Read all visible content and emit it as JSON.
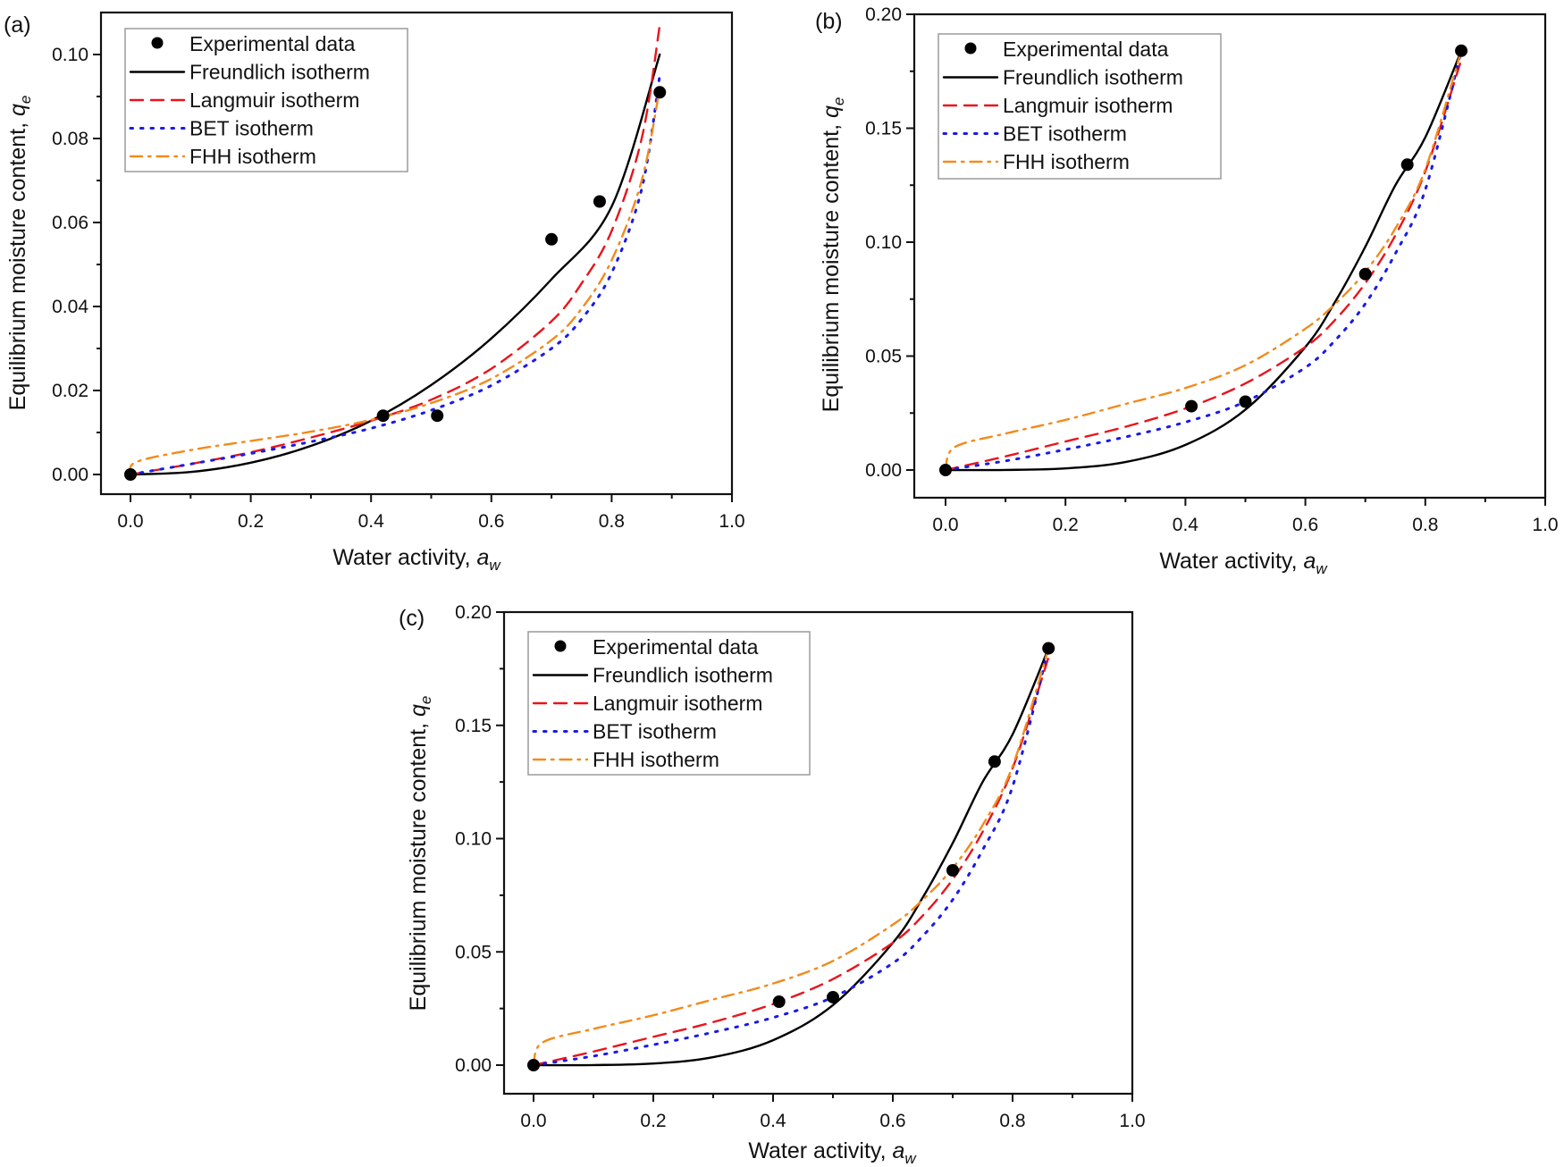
{
  "figure": {
    "panels": [
      "(a)",
      "(b)",
      "(c)"
    ]
  },
  "chart_data": [
    {
      "type": "line",
      "panel": "(a)",
      "xlabel": "Water activity, a_w",
      "xlabel_main": "Water activity, ",
      "xlabel_var": "a",
      "xlabel_sub": "w",
      "ylabel": "Equilibrium moisture content, q_e",
      "ylabel_main": "Equilibrium moisture content, ",
      "ylabel_var": "q",
      "ylabel_sub": "e",
      "xlim": [
        -0.05,
        1.0
      ],
      "ylim": [
        -0.005,
        0.11
      ],
      "xticks": [
        0.0,
        0.2,
        0.4,
        0.6,
        0.8,
        1.0
      ],
      "xtick_labels": [
        "0.0",
        "0.2",
        "0.4",
        "0.6",
        "0.8",
        "1.0"
      ],
      "yticks": [
        0.0,
        0.02,
        0.04,
        0.06,
        0.08,
        0.1
      ],
      "ytick_labels": [
        "0.00",
        "0.02",
        "0.04",
        "0.06",
        "0.08",
        "0.10"
      ],
      "legend_position": "top-left",
      "grid": false,
      "series": [
        {
          "name": "Experimental data",
          "kind": "scatter",
          "color": "#000000",
          "x": [
            0.0,
            0.42,
            0.51,
            0.7,
            0.78,
            0.88
          ],
          "y": [
            0.0,
            0.014,
            0.014,
            0.056,
            0.065,
            0.091
          ]
        },
        {
          "name": "Freundlich isotherm",
          "kind": "line",
          "style": "solid",
          "color": "#000000",
          "x": [
            0.0,
            0.1,
            0.2,
            0.3,
            0.4,
            0.5,
            0.6,
            0.7,
            0.8,
            0.88
          ],
          "y": [
            0.0,
            0.0006,
            0.0028,
            0.0068,
            0.0128,
            0.0213,
            0.0324,
            0.0465,
            0.0638,
            0.1
          ]
        },
        {
          "name": "Langmuir isotherm",
          "kind": "line",
          "style": "dashed",
          "color": "#e8141c",
          "x": [
            0.0,
            0.1,
            0.2,
            0.3,
            0.4,
            0.5,
            0.6,
            0.7,
            0.75,
            0.8,
            0.85,
            0.88
          ],
          "y": [
            0.0,
            0.0025,
            0.0053,
            0.0088,
            0.0128,
            0.0178,
            0.0252,
            0.0365,
            0.0455,
            0.058,
            0.08,
            0.107
          ]
        },
        {
          "name": "BET isotherm",
          "kind": "line",
          "style": "dotted",
          "color": "#1a1ae6",
          "x": [
            0.0,
            0.1,
            0.2,
            0.3,
            0.4,
            0.5,
            0.6,
            0.7,
            0.75,
            0.8,
            0.85,
            0.88
          ],
          "y": [
            0.0,
            0.0025,
            0.005,
            0.0078,
            0.011,
            0.0153,
            0.0212,
            0.03,
            0.037,
            0.048,
            0.068,
            0.095
          ]
        },
        {
          "name": "FHH isotherm",
          "kind": "line",
          "style": "dashdot",
          "color": "#f28a1c",
          "x": [
            0.0,
            0.01,
            0.1,
            0.2,
            0.3,
            0.4,
            0.5,
            0.6,
            0.7,
            0.75,
            0.8,
            0.85,
            0.88
          ],
          "y": [
            0.0,
            0.003,
            0.0058,
            0.008,
            0.0102,
            0.013,
            0.017,
            0.0228,
            0.032,
            0.0395,
            0.051,
            0.07,
            0.092
          ]
        }
      ]
    },
    {
      "type": "line",
      "panel": "(b)",
      "xlabel": "Water activity, a_w",
      "xlabel_main": "Water activity, ",
      "xlabel_var": "a",
      "xlabel_sub": "w",
      "ylabel": "Equilibrium moisture content, q_e",
      "ylabel_main": "Equilibrium moisture content, ",
      "ylabel_var": "q",
      "ylabel_sub": "e",
      "xlim": [
        -0.05,
        1.0
      ],
      "ylim": [
        -0.0125,
        0.2
      ],
      "xticks": [
        0.0,
        0.2,
        0.4,
        0.6,
        0.8,
        1.0
      ],
      "xtick_labels": [
        "0.0",
        "0.2",
        "0.4",
        "0.6",
        "0.8",
        "1.0"
      ],
      "yticks": [
        0.0,
        0.05,
        0.1,
        0.15,
        0.2
      ],
      "ytick_labels": [
        "0.00",
        "0.05",
        "0.10",
        "0.15",
        "0.20"
      ],
      "legend_position": "top-left",
      "grid": false,
      "series": [
        {
          "name": "Experimental data",
          "kind": "scatter",
          "color": "#000000",
          "x": [
            0.0,
            0.41,
            0.5,
            0.7,
            0.77,
            0.86
          ],
          "y": [
            0.0,
            0.028,
            0.03,
            0.086,
            0.134,
            0.184
          ]
        },
        {
          "name": "Freundlich isotherm",
          "kind": "line",
          "style": "solid",
          "color": "#000000",
          "x": [
            0.0,
            0.1,
            0.2,
            0.3,
            0.4,
            0.5,
            0.6,
            0.65,
            0.7,
            0.75,
            0.8,
            0.86
          ],
          "y": [
            0.0,
            3e-05,
            0.0007,
            0.0035,
            0.011,
            0.0265,
            0.054,
            0.074,
            0.098,
            0.125,
            0.146,
            0.184
          ]
        },
        {
          "name": "Langmuir isotherm",
          "kind": "line",
          "style": "dashed",
          "color": "#e8141c",
          "x": [
            0.0,
            0.1,
            0.2,
            0.3,
            0.4,
            0.5,
            0.6,
            0.65,
            0.7,
            0.75,
            0.8,
            0.86
          ],
          "y": [
            0.0,
            0.006,
            0.0125,
            0.019,
            0.027,
            0.038,
            0.054,
            0.066,
            0.082,
            0.103,
            0.131,
            0.18
          ]
        },
        {
          "name": "BET isotherm",
          "kind": "line",
          "style": "dotted",
          "color": "#1a1ae6",
          "x": [
            0.0,
            0.1,
            0.2,
            0.3,
            0.4,
            0.5,
            0.6,
            0.65,
            0.7,
            0.75,
            0.8,
            0.86
          ],
          "y": [
            0.0,
            0.004,
            0.009,
            0.0145,
            0.021,
            0.03,
            0.045,
            0.057,
            0.073,
            0.095,
            0.123,
            0.184
          ]
        },
        {
          "name": "FHH isotherm",
          "kind": "line",
          "style": "dashdot",
          "color": "#f28a1c",
          "x": [
            0.0,
            0.015,
            0.1,
            0.2,
            0.3,
            0.4,
            0.5,
            0.6,
            0.65,
            0.7,
            0.75,
            0.8,
            0.86
          ],
          "y": [
            0.0,
            0.01,
            0.016,
            0.022,
            0.029,
            0.036,
            0.046,
            0.062,
            0.073,
            0.087,
            0.106,
            0.132,
            0.184
          ]
        }
      ]
    },
    {
      "type": "line",
      "panel": "(c)",
      "xlabel": "Water activity, a_w",
      "xlabel_main": "Water activity, ",
      "xlabel_var": "a",
      "xlabel_sub": "w",
      "ylabel": "Equilibrium moisture content, q_e",
      "ylabel_main": "Equilibrium moisture content, ",
      "ylabel_var": "q",
      "ylabel_sub": "e",
      "xlim": [
        -0.05,
        1.0
      ],
      "ylim": [
        -0.0125,
        0.2
      ],
      "xticks": [
        0.0,
        0.2,
        0.4,
        0.6,
        0.8,
        1.0
      ],
      "xtick_labels": [
        "0.0",
        "0.2",
        "0.4",
        "0.6",
        "0.8",
        "1.0"
      ],
      "yticks": [
        0.0,
        0.05,
        0.1,
        0.15,
        0.2
      ],
      "ytick_labels": [
        "0.00",
        "0.05",
        "0.10",
        "0.15",
        "0.20"
      ],
      "legend_position": "top-left",
      "grid": false,
      "series": [
        {
          "name": "Experimental data",
          "kind": "scatter",
          "color": "#000000",
          "x": [
            0.0,
            0.41,
            0.5,
            0.7,
            0.77,
            0.86
          ],
          "y": [
            0.0,
            0.028,
            0.03,
            0.086,
            0.134,
            0.184
          ]
        },
        {
          "name": "Freundlich isotherm",
          "kind": "line",
          "style": "solid",
          "color": "#000000",
          "x": [
            0.0,
            0.1,
            0.2,
            0.3,
            0.4,
            0.5,
            0.6,
            0.65,
            0.7,
            0.75,
            0.8,
            0.86
          ],
          "y": [
            0.0,
            3e-05,
            0.0007,
            0.0035,
            0.011,
            0.0265,
            0.054,
            0.074,
            0.098,
            0.125,
            0.146,
            0.184
          ]
        },
        {
          "name": "Langmuir isotherm",
          "kind": "line",
          "style": "dashed",
          "color": "#e8141c",
          "x": [
            0.0,
            0.1,
            0.2,
            0.3,
            0.4,
            0.5,
            0.6,
            0.65,
            0.7,
            0.75,
            0.8,
            0.86
          ],
          "y": [
            0.0,
            0.006,
            0.0125,
            0.019,
            0.027,
            0.038,
            0.054,
            0.066,
            0.082,
            0.103,
            0.131,
            0.18
          ]
        },
        {
          "name": "BET isotherm",
          "kind": "line",
          "style": "dotted",
          "color": "#1a1ae6",
          "x": [
            0.0,
            0.1,
            0.2,
            0.3,
            0.4,
            0.5,
            0.6,
            0.65,
            0.7,
            0.75,
            0.8,
            0.86
          ],
          "y": [
            0.0,
            0.004,
            0.009,
            0.0145,
            0.021,
            0.03,
            0.045,
            0.057,
            0.073,
            0.095,
            0.123,
            0.184
          ]
        },
        {
          "name": "FHH isotherm",
          "kind": "line",
          "style": "dashdot",
          "color": "#f28a1c",
          "x": [
            0.0,
            0.015,
            0.1,
            0.2,
            0.3,
            0.4,
            0.5,
            0.6,
            0.65,
            0.7,
            0.75,
            0.8,
            0.86
          ],
          "y": [
            0.0,
            0.01,
            0.016,
            0.022,
            0.029,
            0.036,
            0.046,
            0.062,
            0.073,
            0.087,
            0.106,
            0.132,
            0.184
          ]
        }
      ]
    }
  ]
}
